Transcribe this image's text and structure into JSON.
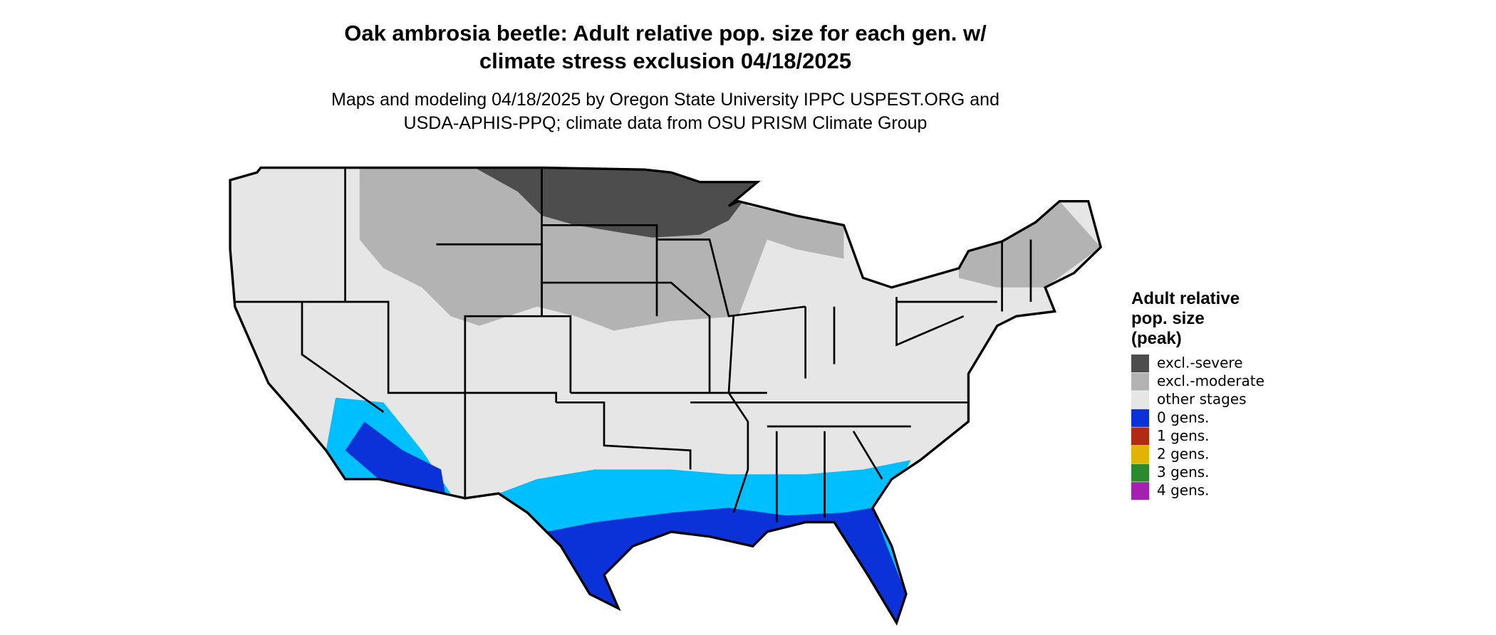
{
  "title": [
    "Oak ambrosia beetle: Adult relative pop. size for each gen. w/",
    "climate stress exclusion 04/18/2025"
  ],
  "subtitle": [
    "Maps and modeling 04/18/2025 by Oregon State University IPPC USPEST.ORG and",
    "USDA-APHIS-PPQ; climate data from OSU PRISM Climate Group"
  ],
  "legend": {
    "title": [
      "Adult relative",
      "pop. size",
      "(peak)"
    ],
    "items": [
      {
        "label": "excl.-severe",
        "color": "#4d4d4d"
      },
      {
        "label": "excl.-moderate",
        "color": "#b3b3b3"
      },
      {
        "label": "other stages",
        "color": "#e6e6e6"
      },
      {
        "label": "0 gens.",
        "color": "#0a32d8"
      },
      {
        "label": "1 gens.",
        "color": "#b22a14"
      },
      {
        "label": "2 gens.",
        "color": "#e0b400"
      },
      {
        "label": "3 gens.",
        "color": "#2b8a2b"
      },
      {
        "label": "4 gens.",
        "color": "#a51fb0"
      }
    ]
  }
}
